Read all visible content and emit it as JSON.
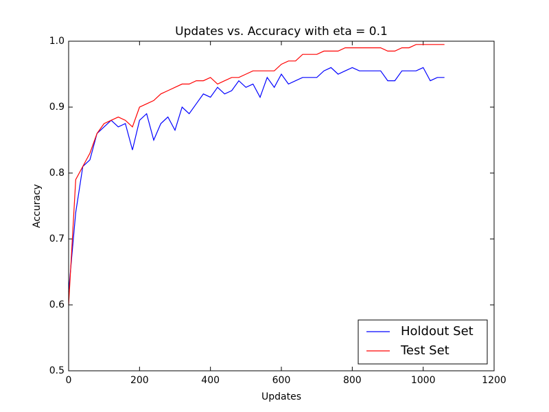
{
  "chart_data": {
    "type": "line",
    "title": "Updates vs. Accuracy with eta = 0.1",
    "xlabel": "Updates",
    "ylabel": "Accuracy",
    "x": [
      0,
      20,
      40,
      60,
      80,
      100,
      120,
      140,
      160,
      180,
      200,
      220,
      240,
      260,
      280,
      300,
      320,
      340,
      360,
      380,
      400,
      420,
      440,
      460,
      480,
      500,
      520,
      540,
      560,
      580,
      600,
      620,
      640,
      660,
      680,
      700,
      720,
      740,
      760,
      780,
      800,
      820,
      840,
      860,
      880,
      900,
      920,
      940,
      960,
      980,
      1000,
      1020,
      1040,
      1060
    ],
    "series": [
      {
        "name": "Holdout Set",
        "color": "#0000ff",
        "values": [
          0.62,
          0.74,
          0.81,
          0.82,
          0.86,
          0.87,
          0.88,
          0.87,
          0.875,
          0.835,
          0.88,
          0.89,
          0.85,
          0.875,
          0.885,
          0.865,
          0.9,
          0.89,
          0.905,
          0.92,
          0.915,
          0.93,
          0.92,
          0.925,
          0.94,
          0.93,
          0.935,
          0.915,
          0.945,
          0.93,
          0.95,
          0.935,
          0.94,
          0.945,
          0.945,
          0.945,
          0.955,
          0.96,
          0.95,
          0.955,
          0.96,
          0.955,
          0.955,
          0.955,
          0.955,
          0.94,
          0.94,
          0.955,
          0.955,
          0.955,
          0.96,
          0.94,
          0.945,
          0.945
        ]
      },
      {
        "name": "Test Set",
        "color": "#ff0000",
        "values": [
          0.6,
          0.79,
          0.81,
          0.83,
          0.86,
          0.875,
          0.88,
          0.885,
          0.88,
          0.87,
          0.9,
          0.905,
          0.91,
          0.92,
          0.925,
          0.93,
          0.935,
          0.935,
          0.94,
          0.94,
          0.945,
          0.935,
          0.94,
          0.945,
          0.945,
          0.95,
          0.955,
          0.955,
          0.955,
          0.955,
          0.965,
          0.97,
          0.97,
          0.98,
          0.98,
          0.98,
          0.985,
          0.985,
          0.985,
          0.99,
          0.99,
          0.99,
          0.99,
          0.99,
          0.99,
          0.985,
          0.985,
          0.99,
          0.99,
          0.995,
          0.995,
          0.995,
          0.995,
          0.995
        ]
      }
    ],
    "xlim": [
      0,
      1200
    ],
    "xticks": [
      0,
      200,
      400,
      600,
      800,
      1000,
      1200
    ],
    "ylim": [
      0.5,
      1
    ],
    "yticks": [
      0.5,
      0.6,
      0.7,
      0.8,
      0.9,
      {
        "value": 1,
        "label": "1.0"
      }
    ],
    "legend": "lower right",
    "grid": false
  }
}
